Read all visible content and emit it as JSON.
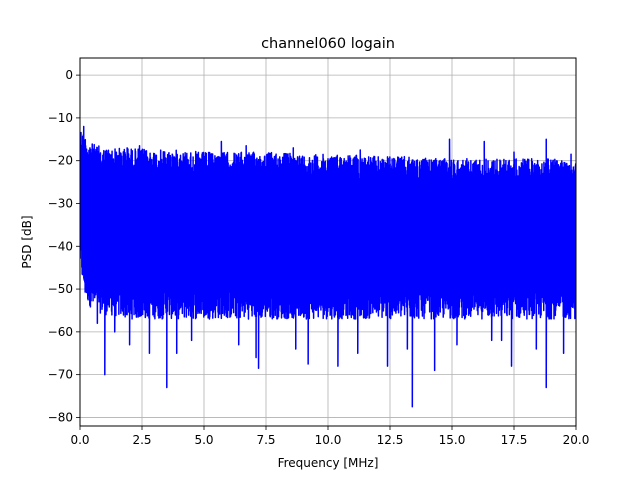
{
  "chart_data": {
    "type": "line",
    "title": "channel060 logain",
    "xlabel": "Frequency [MHz]",
    "ylabel": "PSD [dB]",
    "xlim": [
      0,
      20
    ],
    "ylim": [
      -82,
      4
    ],
    "xticks": [
      0,
      2.5,
      5,
      7.5,
      10,
      12.5,
      15,
      17.5,
      20
    ],
    "xtick_labels": [
      "0.0",
      "2.5",
      "5.0",
      "7.5",
      "10.0",
      "12.5",
      "15.0",
      "17.5",
      "20.0"
    ],
    "yticks": [
      0,
      -10,
      -20,
      -30,
      -40,
      -50,
      -60,
      -70,
      -80
    ],
    "ytick_labels": [
      "0",
      "−10",
      "−20",
      "−30",
      "−40",
      "−50",
      "−60",
      "−70",
      "−80"
    ],
    "grid": true,
    "series": [
      {
        "color": "#0000ff",
        "upper_envelope": {
          "x": [
            0,
            0.1,
            0.3,
            0.5,
            1,
            2,
            3,
            4,
            5,
            6,
            7,
            8,
            9,
            10,
            11,
            12,
            13,
            14,
            15,
            16,
            17,
            18,
            19,
            20
          ],
          "y": [
            -12,
            -13,
            -15,
            -16,
            -17,
            -17,
            -17.5,
            -17.5,
            -18,
            -18,
            -18,
            -18,
            -18.5,
            -18.5,
            -18.5,
            -19,
            -19,
            -19.5,
            -19.5,
            -19.5,
            -19.5,
            -19.5,
            -19.5,
            -19.5
          ]
        },
        "lower_envelope": {
          "x": [
            0,
            0.2,
            0.5,
            1,
            2,
            3,
            4,
            5,
            6,
            7,
            8,
            9,
            10,
            11,
            12,
            13,
            14,
            15,
            16,
            17,
            18,
            19,
            20
          ],
          "y": [
            -45,
            -52,
            -55,
            -56,
            -57,
            -57,
            -57,
            -57,
            -57,
            -57,
            -57,
            -57,
            -57,
            -57,
            -57,
            -57,
            -57,
            -57,
            -57,
            -57,
            -57,
            -57,
            -57
          ]
        },
        "peaks": [
          {
            "x": 0.15,
            "y": -12
          },
          {
            "x": 1.9,
            "y": -17
          },
          {
            "x": 2.4,
            "y": -16.5
          },
          {
            "x": 5.7,
            "y": -15.5
          },
          {
            "x": 6.7,
            "y": -16.5
          },
          {
            "x": 8.6,
            "y": -17
          },
          {
            "x": 11.3,
            "y": -17.5
          },
          {
            "x": 14.9,
            "y": -15
          },
          {
            "x": 16.3,
            "y": -15.5
          },
          {
            "x": 17.5,
            "y": -18
          },
          {
            "x": 18.8,
            "y": -15
          },
          {
            "x": 19.8,
            "y": -18.5
          }
        ],
        "dips": [
          {
            "x": 0.7,
            "y": -58
          },
          {
            "x": 1.0,
            "y": -70
          },
          {
            "x": 1.4,
            "y": -60
          },
          {
            "x": 2.0,
            "y": -63
          },
          {
            "x": 2.8,
            "y": -65
          },
          {
            "x": 3.5,
            "y": -73
          },
          {
            "x": 3.9,
            "y": -65
          },
          {
            "x": 4.5,
            "y": -62
          },
          {
            "x": 6.4,
            "y": -63
          },
          {
            "x": 7.1,
            "y": -66
          },
          {
            "x": 7.2,
            "y": -68.5
          },
          {
            "x": 8.7,
            "y": -64
          },
          {
            "x": 9.2,
            "y": -67.5
          },
          {
            "x": 10.4,
            "y": -68
          },
          {
            "x": 11.2,
            "y": -65
          },
          {
            "x": 12.4,
            "y": -68
          },
          {
            "x": 13.2,
            "y": -64
          },
          {
            "x": 13.4,
            "y": -77.5
          },
          {
            "x": 14.3,
            "y": -69
          },
          {
            "x": 15.2,
            "y": -63
          },
          {
            "x": 16.6,
            "y": -62
          },
          {
            "x": 17.0,
            "y": -62
          },
          {
            "x": 17.4,
            "y": -68
          },
          {
            "x": 18.4,
            "y": -64
          },
          {
            "x": 18.8,
            "y": -73
          },
          {
            "x": 19.5,
            "y": -65
          }
        ]
      }
    ]
  }
}
